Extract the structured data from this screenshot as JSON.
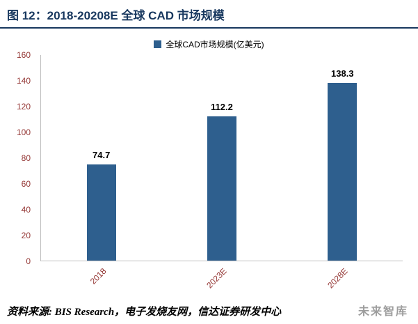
{
  "title": "图 12：2018-20208E 全球 CAD 市场规模",
  "legend_label": "全球CAD市场规模(亿美元)",
  "source_text": "资料来源: BIS Research，电子发烧友网，信达证券研发中心",
  "watermark": "未来智库",
  "colors": {
    "bar": "#2E5F8E",
    "title": "#17375E",
    "axis_label": "#943634"
  },
  "chart_data": {
    "type": "bar",
    "title": "图 12：2018-20208E 全球 CAD 市场规模",
    "categories": [
      "2018",
      "2023E",
      "2028E"
    ],
    "values": [
      74.7,
      112.2,
      138.3
    ],
    "series_name": "全球CAD市场规模(亿美元)",
    "xlabel": "",
    "ylabel": "",
    "ylim": [
      0,
      160
    ],
    "ytick_step": 20,
    "grid": false,
    "legend_position": "top",
    "data_labels": true
  }
}
